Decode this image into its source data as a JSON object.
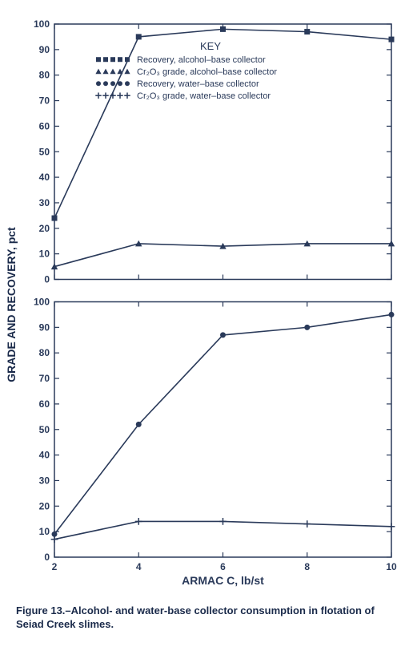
{
  "figure": {
    "caption_prefix": "Figure 13.–",
    "caption_text": "Alcohol- and water-base collector consumption in flotation of Seiad Creek slimes.",
    "ylabel": "GRADE AND RECOVERY, pct",
    "xlabel": "ARMAC C, lb/st",
    "legend_title": "KEY",
    "legend_items": [
      {
        "marker": "square",
        "text": "Recovery, alcohol–base collector"
      },
      {
        "marker": "triangle",
        "text": "Cr₂O₃ grade, alcohol–base collector"
      },
      {
        "marker": "circle",
        "text": "Recovery, water–base collector"
      },
      {
        "marker": "plus",
        "text": "Cr₂O₃ grade, water–base collector"
      }
    ],
    "x_ticks": [
      2,
      4,
      6,
      8,
      10
    ],
    "y_ticks": [
      0,
      10,
      20,
      30,
      40,
      50,
      60,
      70,
      80,
      90,
      100
    ],
    "xlim": [
      2,
      10
    ],
    "ylim": [
      0,
      100
    ],
    "line_color": "#2a3a5a",
    "axis_color": "#2a3a5a",
    "background_color": "#ffffff",
    "tick_fontsize": 12,
    "label_fontsize": 14,
    "top_panel": {
      "series": [
        {
          "name": "recovery-alcohol",
          "marker": "square",
          "x": [
            2,
            4,
            6,
            8,
            10
          ],
          "y": [
            24,
            95,
            98,
            97,
            94
          ]
        },
        {
          "name": "grade-alcohol",
          "marker": "triangle",
          "x": [
            2,
            4,
            6,
            8,
            10
          ],
          "y": [
            5,
            14,
            13,
            14,
            14
          ]
        }
      ]
    },
    "bottom_panel": {
      "series": [
        {
          "name": "recovery-water",
          "marker": "circle",
          "x": [
            2,
            4,
            6,
            8,
            10
          ],
          "y": [
            9,
            52,
            87,
            90,
            95
          ]
        },
        {
          "name": "grade-water",
          "marker": "plus",
          "x": [
            2,
            4,
            6,
            8,
            10
          ],
          "y": [
            7,
            14,
            14,
            13,
            12
          ]
        }
      ]
    }
  }
}
